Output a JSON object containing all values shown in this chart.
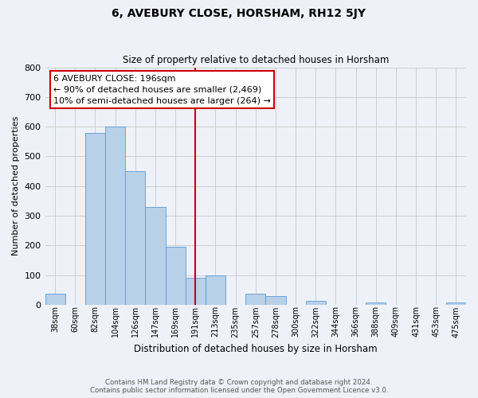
{
  "title": "6, AVEBURY CLOSE, HORSHAM, RH12 5JY",
  "subtitle": "Size of property relative to detached houses in Horsham",
  "xlabel": "Distribution of detached houses by size in Horsham",
  "ylabel": "Number of detached properties",
  "bar_labels": [
    "38sqm",
    "60sqm",
    "82sqm",
    "104sqm",
    "126sqm",
    "147sqm",
    "169sqm",
    "191sqm",
    "213sqm",
    "235sqm",
    "257sqm",
    "278sqm",
    "300sqm",
    "322sqm",
    "344sqm",
    "366sqm",
    "388sqm",
    "409sqm",
    "431sqm",
    "453sqm",
    "475sqm"
  ],
  "bar_heights": [
    38,
    0,
    580,
    600,
    450,
    330,
    195,
    90,
    100,
    0,
    38,
    30,
    0,
    12,
    0,
    0,
    7,
    0,
    0,
    0,
    7
  ],
  "bar_color": "#b8d0e8",
  "bar_edge_color": "#5b9bd5",
  "vline_x_index": 7,
  "vline_color": "#cc0000",
  "ylim": [
    0,
    800
  ],
  "yticks": [
    0,
    100,
    200,
    300,
    400,
    500,
    600,
    700,
    800
  ],
  "annotation_title": "6 AVEBURY CLOSE: 196sqm",
  "annotation_line1": "← 90% of detached houses are smaller (2,469)",
  "annotation_line2": "10% of semi-detached houses are larger (264) →",
  "annotation_box_color": "#ffffff",
  "annotation_box_edge": "#cc0000",
  "footer_line1": "Contains HM Land Registry data © Crown copyright and database right 2024.",
  "footer_line2": "Contains public sector information licensed under the Open Government Licence v3.0.",
  "bg_color": "#eef2f8",
  "plot_bg_color": "#eef2f8"
}
